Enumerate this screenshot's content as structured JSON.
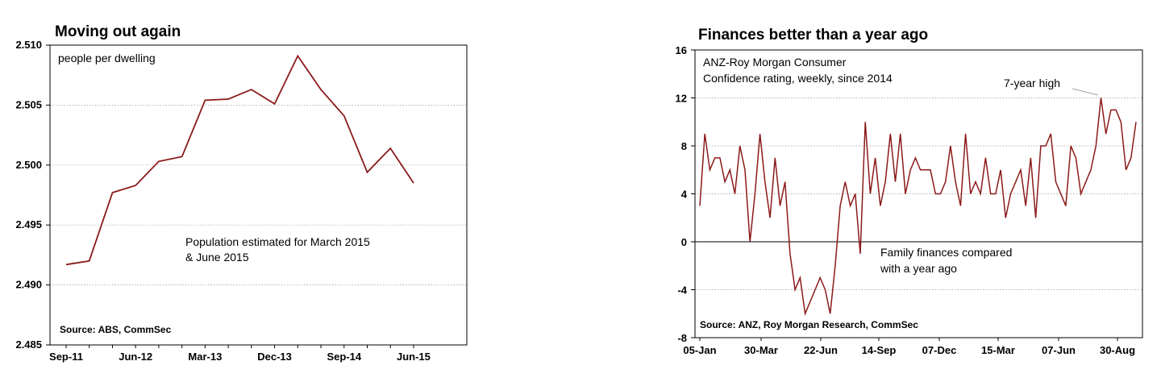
{
  "chart_data": [
    {
      "type": "line",
      "title": "Moving out again",
      "unit_label": "people per dwelling",
      "annotation": "Population estimated for March 2015\n& June 2015",
      "source": "Source: ABS, CommSec",
      "ylim": [
        2.485,
        2.51
      ],
      "yticks": [
        "2.485",
        "2.490",
        "2.495",
        "2.500",
        "2.505",
        "2.510"
      ],
      "xticks": [
        "Sep-11",
        "Jun-12",
        "Mar-13",
        "Dec-13",
        "Sep-14",
        "Jun-15"
      ],
      "grid": true,
      "color": "#8B1A1A",
      "series": [
        {
          "x": [
            "Sep-11",
            "Dec-11",
            "Mar-12",
            "Jun-12",
            "Sep-12",
            "Dec-12",
            "Mar-13",
            "Jun-13",
            "Sep-13",
            "Dec-13",
            "Mar-14",
            "Jun-14",
            "Sep-14",
            "Dec-14",
            "Mar-15",
            "Jun-15"
          ],
          "values": [
            2.4917,
            2.492,
            2.4977,
            2.4983,
            2.5003,
            2.5007,
            2.5054,
            2.5055,
            2.5063,
            2.5051,
            2.5091,
            2.5063,
            2.5041,
            2.4994,
            2.5014,
            2.4985
          ]
        }
      ]
    },
    {
      "type": "line",
      "title": "Finances better than a year ago",
      "unit_label": "ANZ-Roy Morgan Consumer\nConfidence rating, weekly, since 2014",
      "annotations": [
        "7-year high",
        "Family finances compared\nwith a year ago"
      ],
      "source": "Source: ANZ, Roy Morgan Research, CommSec",
      "ylim": [
        -8,
        16
      ],
      "yticks": [
        "-8",
        "-4",
        "0",
        "4",
        "8",
        "12",
        "16"
      ],
      "xticks": [
        "05-Jan",
        "30-Mar",
        "22-Jun",
        "14-Sep",
        "07-Dec",
        "15-Mar",
        "07-Jun",
        "30-Aug"
      ],
      "grid": true,
      "color": "#8B1A1A",
      "series": [
        {
          "values": [
            3,
            9,
            6,
            7,
            7,
            5,
            6,
            4,
            8,
            6,
            0,
            4,
            9,
            5,
            2,
            7,
            3,
            5,
            -1,
            -4,
            -3,
            -6,
            -5,
            -4,
            -3,
            -4,
            -6,
            -2,
            3,
            5,
            3,
            4,
            -1,
            10,
            4,
            7,
            3,
            5,
            9,
            5,
            9,
            4,
            6,
            7,
            6,
            6,
            6,
            4,
            4,
            5,
            8,
            5,
            3,
            9,
            4,
            5,
            4,
            7,
            4,
            4,
            6,
            2,
            4,
            5,
            6,
            3,
            7,
            2,
            8,
            8,
            9,
            5,
            4,
            3,
            8,
            7,
            4,
            5,
            6,
            8,
            12,
            9,
            11,
            11,
            10,
            6,
            7,
            10
          ]
        }
      ]
    }
  ]
}
